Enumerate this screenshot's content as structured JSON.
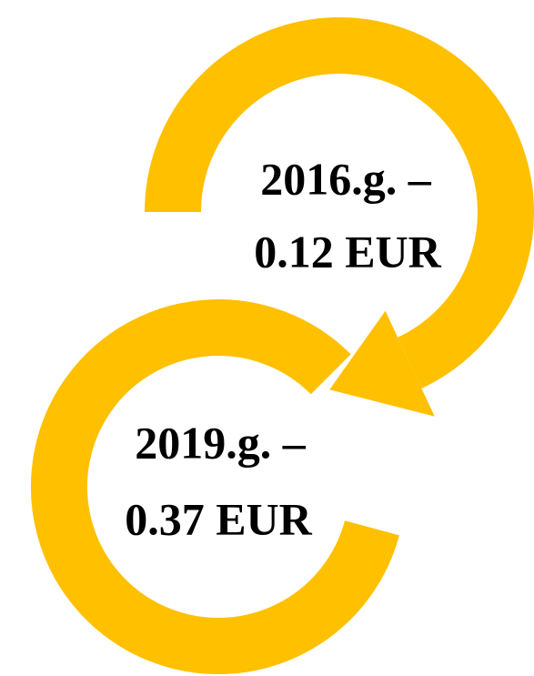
{
  "items": [
    {
      "lines": [
        "2016.g. –",
        "0.12 EUR"
      ]
    },
    {
      "lines": [
        "2019.g. –",
        "0.37 EUR"
      ]
    }
  ]
}
